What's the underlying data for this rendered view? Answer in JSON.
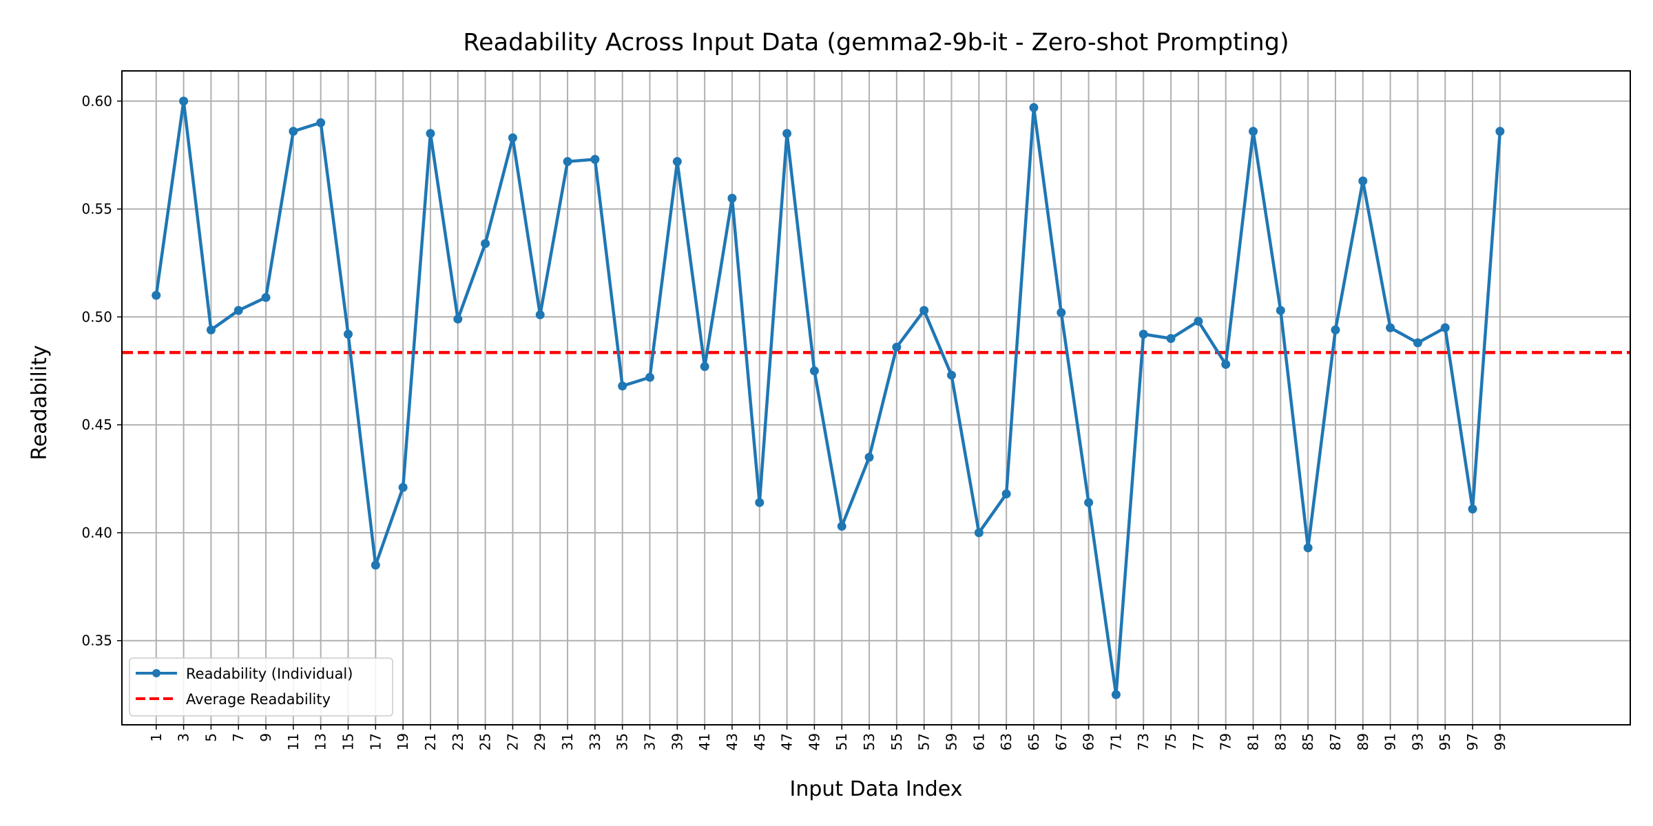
{
  "chart_data": {
    "type": "line",
    "title": "Readability Across Input Data (gemma2-9b-it - Zero-shot Prompting)",
    "xlabel": "Input Data Index",
    "ylabel": "Readability",
    "xlim": [
      -1.5,
      108.5
    ],
    "ylim": [
      0.311,
      0.614
    ],
    "x_ticks": [
      1,
      3,
      5,
      7,
      9,
      11,
      13,
      15,
      17,
      19,
      21,
      23,
      25,
      27,
      29,
      31,
      33,
      35,
      37,
      39,
      41,
      43,
      45,
      47,
      49,
      51,
      53,
      55,
      57,
      59,
      61,
      63,
      65,
      67,
      69,
      71,
      73,
      75,
      77,
      79,
      81,
      83,
      85,
      87,
      89,
      91,
      93,
      95,
      97,
      99
    ],
    "y_ticks": [
      0.35,
      0.4,
      0.45,
      0.5,
      0.55,
      0.6
    ],
    "y_tick_labels": [
      "0.35",
      "0.40",
      "0.45",
      "0.50",
      "0.55",
      "0.60"
    ],
    "grid": true,
    "legend_position": "bottom-left",
    "series": [
      {
        "name": "Readability (Individual)",
        "color": "#1f77b4",
        "style": "solid-with-markers",
        "x": [
          1,
          3,
          5,
          7,
          9,
          11,
          13,
          15,
          17,
          19,
          21,
          23,
          25,
          27,
          29,
          31,
          33,
          35,
          37,
          39,
          41,
          43,
          45,
          47,
          49,
          51,
          53,
          55,
          57,
          59,
          61,
          63,
          65,
          67,
          69,
          71,
          73,
          75,
          77,
          79,
          81,
          83,
          85,
          87,
          89,
          91,
          93,
          95,
          97,
          99
        ],
        "values": [
          0.51,
          0.6,
          0.494,
          0.503,
          0.509,
          0.586,
          0.59,
          0.492,
          0.385,
          0.421,
          0.585,
          0.499,
          0.534,
          0.583,
          0.501,
          0.572,
          0.573,
          0.468,
          0.472,
          0.572,
          0.477,
          0.555,
          0.414,
          0.585,
          0.475,
          0.403,
          0.435,
          0.486,
          0.503,
          0.473,
          0.4,
          0.418,
          0.597,
          0.502,
          0.414,
          0.325,
          0.492,
          0.49,
          0.498,
          0.478,
          0.586,
          0.503,
          0.393,
          0.494,
          0.563,
          0.495,
          0.488,
          0.495,
          0.411,
          0.586
        ]
      },
      {
        "name": "Average Readability",
        "color": "#ff0000",
        "style": "dashed",
        "value": 0.4835
      }
    ]
  }
}
